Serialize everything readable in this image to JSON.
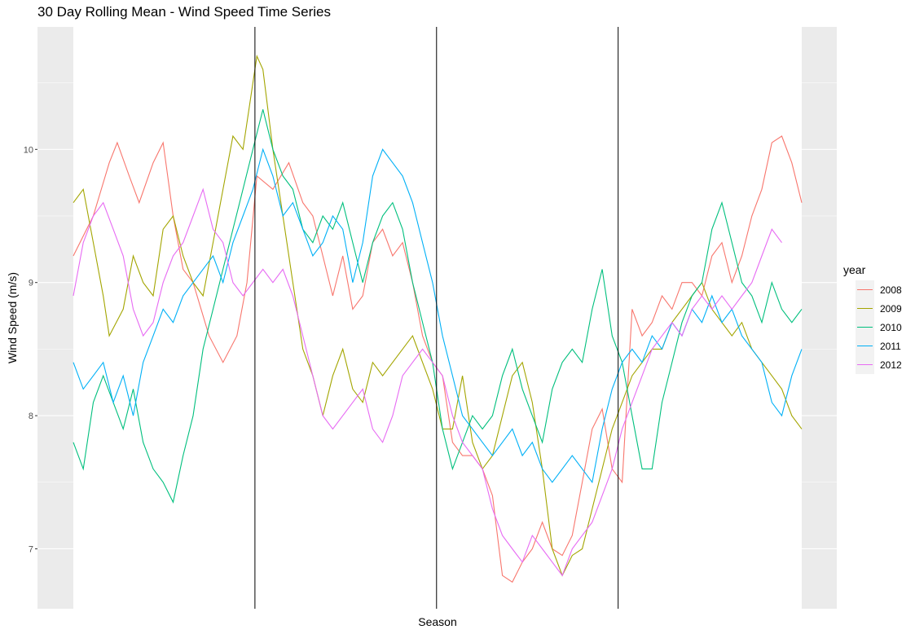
{
  "chart_data": {
    "type": "line",
    "title": "30 Day Rolling Mean - Wind Speed Time Series",
    "xlabel": "Season",
    "ylabel": "Wind Speed (m/s)",
    "ylim": [
      6.55,
      10.92
    ],
    "xlim": [
      0,
      365
    ],
    "yticks": [
      7,
      8,
      9,
      10
    ],
    "season_boundaries": [
      91,
      182,
      273
    ],
    "grid": true,
    "legend": {
      "title": "year",
      "placement": "right",
      "entries": [
        "2008",
        "2009",
        "2010",
        "2011",
        "2012"
      ]
    },
    "series": [
      {
        "name": "2008",
        "color": "#F8766D",
        "x": [
          0,
          10,
          18,
          22,
          28,
          33,
          40,
          45,
          50,
          55,
          60,
          68,
          75,
          82,
          87,
          92,
          100,
          108,
          115,
          120,
          125,
          130,
          135,
          140,
          145,
          150,
          155,
          160,
          165,
          170,
          175,
          180,
          185,
          190,
          195,
          200,
          205,
          210,
          215,
          220,
          225,
          230,
          235,
          240,
          245,
          250,
          255,
          260,
          265,
          270,
          275,
          280,
          285,
          290,
          295,
          300,
          305,
          310,
          315,
          320,
          325,
          330,
          335,
          340,
          345,
          350,
          355,
          360,
          365
        ],
        "y": [
          9.2,
          9.5,
          9.9,
          10.05,
          9.8,
          9.6,
          9.9,
          10.05,
          9.5,
          9.1,
          9.0,
          8.6,
          8.4,
          8.6,
          9.0,
          9.8,
          9.7,
          9.9,
          9.6,
          9.5,
          9.2,
          8.9,
          9.2,
          8.8,
          8.9,
          9.3,
          9.4,
          9.2,
          9.3,
          9.0,
          8.6,
          8.4,
          8.3,
          7.8,
          7.7,
          7.7,
          7.6,
          7.4,
          6.8,
          6.75,
          6.9,
          7.0,
          7.2,
          7.0,
          6.95,
          7.1,
          7.5,
          7.9,
          8.05,
          7.6,
          7.5,
          8.8,
          8.6,
          8.7,
          8.9,
          8.8,
          9.0,
          9.0,
          8.9,
          9.2,
          9.3,
          9.0,
          9.2,
          9.5,
          9.7,
          10.05,
          10.1,
          9.9,
          9.6
        ]
      },
      {
        "name": "2009",
        "color": "#A3A500",
        "x": [
          0,
          5,
          10,
          15,
          18,
          25,
          30,
          35,
          40,
          45,
          50,
          55,
          60,
          65,
          70,
          75,
          80,
          85,
          90,
          92,
          95,
          100,
          105,
          110,
          115,
          120,
          125,
          130,
          135,
          140,
          145,
          150,
          155,
          160,
          165,
          170,
          175,
          180,
          185,
          190,
          195,
          200,
          205,
          210,
          215,
          220,
          225,
          230,
          235,
          240,
          245,
          250,
          255,
          260,
          265,
          270,
          275,
          280,
          285,
          290,
          295,
          300,
          305,
          310,
          315,
          320,
          325,
          330,
          335,
          340,
          345,
          350,
          355,
          360,
          365
        ],
        "y": [
          9.6,
          9.7,
          9.3,
          8.9,
          8.6,
          8.8,
          9.2,
          9.0,
          8.9,
          9.4,
          9.5,
          9.2,
          9.0,
          8.9,
          9.3,
          9.7,
          10.1,
          10.0,
          10.5,
          10.7,
          10.6,
          10.0,
          9.5,
          9.0,
          8.5,
          8.3,
          8.0,
          8.3,
          8.5,
          8.2,
          8.1,
          8.4,
          8.3,
          8.4,
          8.5,
          8.6,
          8.4,
          8.2,
          7.9,
          7.9,
          8.3,
          7.8,
          7.6,
          7.7,
          8.0,
          8.3,
          8.4,
          8.1,
          7.6,
          7.0,
          6.8,
          6.95,
          7.0,
          7.3,
          7.6,
          7.9,
          8.1,
          8.3,
          8.4,
          8.5,
          8.5,
          8.7,
          8.8,
          8.9,
          9.0,
          8.8,
          8.7,
          8.6,
          8.7,
          8.5,
          8.4,
          8.3,
          8.2,
          8.0,
          7.9
        ]
      },
      {
        "name": "2010",
        "color": "#00BF7D",
        "x": [
          0,
          5,
          10,
          15,
          20,
          25,
          30,
          35,
          40,
          45,
          50,
          55,
          60,
          65,
          70,
          75,
          80,
          85,
          90,
          95,
          100,
          105,
          110,
          115,
          120,
          125,
          130,
          135,
          140,
          145,
          150,
          155,
          160,
          165,
          170,
          175,
          180,
          185,
          190,
          195,
          200,
          205,
          210,
          215,
          220,
          225,
          230,
          235,
          240,
          245,
          250,
          255,
          260,
          265,
          270,
          275,
          280,
          285,
          290,
          295,
          300,
          305,
          310,
          315,
          320,
          325,
          330,
          335,
          340,
          345,
          350,
          355,
          360,
          365
        ],
        "y": [
          7.8,
          7.6,
          8.1,
          8.3,
          8.1,
          7.9,
          8.2,
          7.8,
          7.6,
          7.5,
          7.35,
          7.7,
          8.0,
          8.5,
          8.8,
          9.1,
          9.4,
          9.7,
          10.0,
          10.3,
          10.0,
          9.8,
          9.7,
          9.4,
          9.3,
          9.5,
          9.4,
          9.6,
          9.3,
          9.0,
          9.3,
          9.5,
          9.6,
          9.4,
          9.0,
          8.7,
          8.4,
          7.9,
          7.6,
          7.8,
          8.0,
          7.9,
          8.0,
          8.3,
          8.5,
          8.2,
          8.0,
          7.8,
          8.2,
          8.4,
          8.5,
          8.4,
          8.8,
          9.1,
          8.6,
          8.4,
          8.0,
          7.6,
          7.6,
          8.1,
          8.4,
          8.7,
          8.9,
          9.0,
          9.4,
          9.6,
          9.3,
          9.0,
          8.9,
          8.7,
          9.0,
          8.8,
          8.7,
          8.8
        ]
      },
      {
        "name": "2011",
        "color": "#00B0F6",
        "x": [
          0,
          5,
          10,
          15,
          20,
          25,
          30,
          35,
          40,
          45,
          50,
          55,
          60,
          65,
          70,
          75,
          80,
          85,
          90,
          95,
          100,
          105,
          110,
          115,
          120,
          125,
          130,
          135,
          140,
          145,
          150,
          155,
          160,
          165,
          170,
          175,
          180,
          185,
          190,
          195,
          200,
          205,
          210,
          215,
          220,
          225,
          230,
          235,
          240,
          245,
          250,
          255,
          260,
          265,
          270,
          275,
          280,
          285,
          290,
          295,
          300,
          305,
          310,
          315,
          320,
          325,
          330,
          335,
          340,
          345,
          350,
          355,
          360,
          365
        ],
        "y": [
          8.4,
          8.2,
          8.3,
          8.4,
          8.1,
          8.3,
          8.0,
          8.4,
          8.6,
          8.8,
          8.7,
          8.9,
          9.0,
          9.1,
          9.2,
          9.0,
          9.3,
          9.5,
          9.7,
          10.0,
          9.8,
          9.5,
          9.6,
          9.4,
          9.2,
          9.3,
          9.5,
          9.4,
          9.0,
          9.3,
          9.8,
          10.0,
          9.9,
          9.8,
          9.6,
          9.3,
          9.0,
          8.6,
          8.3,
          8.0,
          7.9,
          7.8,
          7.7,
          7.8,
          7.9,
          7.7,
          7.8,
          7.6,
          7.5,
          7.6,
          7.7,
          7.6,
          7.5,
          7.9,
          8.2,
          8.4,
          8.5,
          8.4,
          8.6,
          8.5,
          8.7,
          8.6,
          8.8,
          8.7,
          8.9,
          8.7,
          8.8,
          8.6,
          8.5,
          8.4,
          8.1,
          8.0,
          8.3,
          8.5
        ]
      },
      {
        "name": "2012",
        "color": "#E76BF3",
        "x": [
          0,
          5,
          10,
          15,
          20,
          25,
          30,
          35,
          40,
          45,
          50,
          55,
          60,
          65,
          70,
          75,
          80,
          85,
          90,
          95,
          100,
          105,
          110,
          115,
          120,
          125,
          130,
          135,
          140,
          145,
          150,
          155,
          160,
          165,
          170,
          175,
          180,
          185,
          190,
          195,
          200,
          205,
          210,
          215,
          220,
          225,
          230,
          235,
          240,
          245,
          250,
          255,
          260,
          265,
          270,
          275,
          280,
          285,
          290,
          295,
          300,
          305,
          310,
          315,
          320,
          325,
          330,
          335,
          340,
          345,
          350,
          355
        ],
        "y": [
          8.9,
          9.3,
          9.5,
          9.6,
          9.4,
          9.2,
          8.8,
          8.6,
          8.7,
          9.0,
          9.2,
          9.3,
          9.5,
          9.7,
          9.4,
          9.3,
          9.0,
          8.9,
          9.0,
          9.1,
          9.0,
          9.1,
          8.9,
          8.6,
          8.3,
          8.0,
          7.9,
          8.0,
          8.1,
          8.2,
          7.9,
          7.8,
          8.0,
          8.3,
          8.4,
          8.5,
          8.4,
          8.3,
          8.0,
          7.8,
          7.7,
          7.6,
          7.3,
          7.1,
          7.0,
          6.9,
          7.1,
          7.0,
          6.9,
          6.8,
          7.0,
          7.1,
          7.2,
          7.4,
          7.6,
          7.9,
          8.1,
          8.3,
          8.5,
          8.6,
          8.7,
          8.6,
          8.8,
          8.9,
          8.8,
          8.9,
          8.8,
          8.9,
          9.0,
          9.2,
          9.4,
          9.3
        ]
      }
    ]
  }
}
